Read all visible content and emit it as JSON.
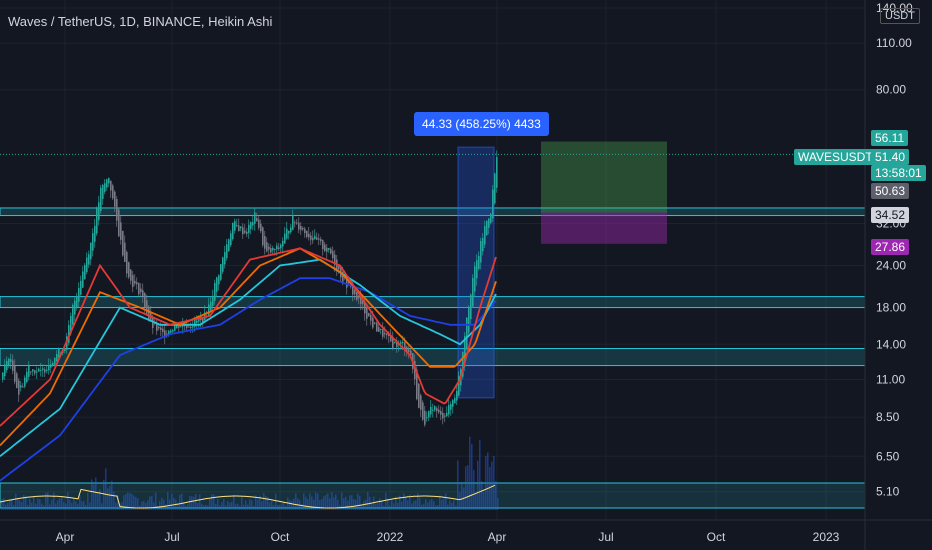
{
  "title": "Waves / TetherUS, 1D, BINANCE, Heikin Ashi",
  "currency_box": "USDT",
  "measure_tooltip": "44.33 (458.25%) 4433",
  "symbol_tag": "WAVESUSDT",
  "price_tags": {
    "target": "56.11",
    "last": "51.40",
    "countdown": "13:58:01",
    "prev": "50.63",
    "entry": "34.52",
    "stop": "27.86"
  },
  "colors": {
    "background": "#131722",
    "target_tag": "#26a69a",
    "stop_tag": "#9c27b0",
    "hud": "#2962ff",
    "ema_short": "#e53935",
    "ema_mid": "#ef6c00",
    "ema_long": "#26c6da",
    "ema_longest": "#1e40e6",
    "zone": "#26c6da"
  },
  "y_axis": [
    "140.00",
    "110.00",
    "80.00",
    "51.40",
    "34.52",
    "32.00",
    "24.00",
    "18.00",
    "14.00",
    "11.00",
    "8.50",
    "6.50",
    "5.10"
  ],
  "x_axis": [
    "Apr",
    "Jul",
    "Oct",
    "2022",
    "Apr",
    "Jul",
    "Oct",
    "2023"
  ],
  "chart_data": {
    "type": "candlestick",
    "title": "Waves / TetherUS, 1D, BINANCE, Heikin Ashi",
    "scale": "log",
    "y_range": [
      4.5,
      140
    ],
    "x_ticks": [
      "Apr",
      "Jul",
      "Oct",
      "2022",
      "Apr",
      "Jul",
      "Oct",
      "2023"
    ],
    "y_ticks": [
      140,
      110,
      80,
      32,
      24,
      18,
      14,
      11,
      8.5,
      6.5,
      5.1
    ],
    "price_curve": [
      [
        0,
        11
      ],
      [
        8,
        13
      ],
      [
        18,
        10
      ],
      [
        28,
        12
      ],
      [
        40,
        11.5
      ],
      [
        55,
        13
      ],
      [
        65,
        14
      ],
      [
        72,
        18
      ],
      [
        80,
        22
      ],
      [
        90,
        28
      ],
      [
        100,
        40
      ],
      [
        108,
        44
      ],
      [
        118,
        30
      ],
      [
        128,
        22
      ],
      [
        140,
        20
      ],
      [
        150,
        16
      ],
      [
        162,
        15
      ],
      [
        175,
        16
      ],
      [
        190,
        16
      ],
      [
        205,
        17
      ],
      [
        220,
        24
      ],
      [
        232,
        32
      ],
      [
        245,
        30
      ],
      [
        255,
        34
      ],
      [
        265,
        26
      ],
      [
        278,
        27
      ],
      [
        292,
        33
      ],
      [
        305,
        30
      ],
      [
        318,
        28
      ],
      [
        330,
        26
      ],
      [
        342,
        22
      ],
      [
        352,
        20
      ],
      [
        362,
        18
      ],
      [
        372,
        16
      ],
      [
        382,
        15
      ],
      [
        392,
        14
      ],
      [
        402,
        14
      ],
      [
        410,
        13
      ],
      [
        418,
        9
      ],
      [
        425,
        8.2
      ],
      [
        432,
        9.2
      ],
      [
        440,
        8.5
      ],
      [
        448,
        9
      ],
      [
        455,
        10
      ],
      [
        460,
        12
      ],
      [
        466,
        17
      ],
      [
        472,
        22
      ],
      [
        478,
        26
      ],
      [
        485,
        32
      ],
      [
        490,
        35
      ],
      [
        494,
        45
      ],
      [
        497,
        52
      ]
    ],
    "ema_short": [
      [
        0,
        8
      ],
      [
        50,
        11
      ],
      [
        100,
        24
      ],
      [
        130,
        18
      ],
      [
        170,
        16
      ],
      [
        210,
        17
      ],
      [
        250,
        25
      ],
      [
        300,
        27
      ],
      [
        340,
        24
      ],
      [
        380,
        16
      ],
      [
        410,
        13
      ],
      [
        425,
        10
      ],
      [
        445,
        9.3
      ],
      [
        460,
        11
      ],
      [
        480,
        18
      ],
      [
        497,
        26
      ]
    ],
    "ema_mid": [
      [
        0,
        7
      ],
      [
        50,
        10
      ],
      [
        100,
        20
      ],
      [
        140,
        18
      ],
      [
        180,
        16
      ],
      [
        220,
        18
      ],
      [
        260,
        24
      ],
      [
        300,
        27
      ],
      [
        340,
        23
      ],
      [
        390,
        16
      ],
      [
        430,
        12
      ],
      [
        455,
        12
      ],
      [
        475,
        14
      ],
      [
        497,
        22
      ]
    ],
    "ema_long": [
      [
        0,
        6.5
      ],
      [
        60,
        9
      ],
      [
        120,
        18
      ],
      [
        160,
        16
      ],
      [
        200,
        16
      ],
      [
        240,
        19
      ],
      [
        280,
        24
      ],
      [
        320,
        25
      ],
      [
        360,
        21
      ],
      [
        400,
        17
      ],
      [
        440,
        15
      ],
      [
        460,
        14
      ],
      [
        480,
        16
      ],
      [
        497,
        20
      ]
    ],
    "ema_longest": [
      [
        0,
        5.5
      ],
      [
        60,
        7.5
      ],
      [
        120,
        13
      ],
      [
        170,
        15
      ],
      [
        220,
        16
      ],
      [
        260,
        19
      ],
      [
        300,
        22
      ],
      [
        330,
        22
      ],
      [
        370,
        20
      ],
      [
        410,
        17
      ],
      [
        450,
        16
      ],
      [
        475,
        16
      ],
      [
        497,
        19
      ]
    ],
    "zones": [
      {
        "low": 33.8,
        "high": 35.6
      },
      {
        "low": 18.0,
        "high": 19.4
      },
      {
        "low": 12.1,
        "high": 13.6
      }
    ],
    "measure": {
      "from": 9.7,
      "to": 54.0,
      "change": "44.33 (458.25%) 4433"
    },
    "position": {
      "entry": 34.52,
      "target": 56.11,
      "stop": 27.86
    },
    "last_price": 51.4
  }
}
